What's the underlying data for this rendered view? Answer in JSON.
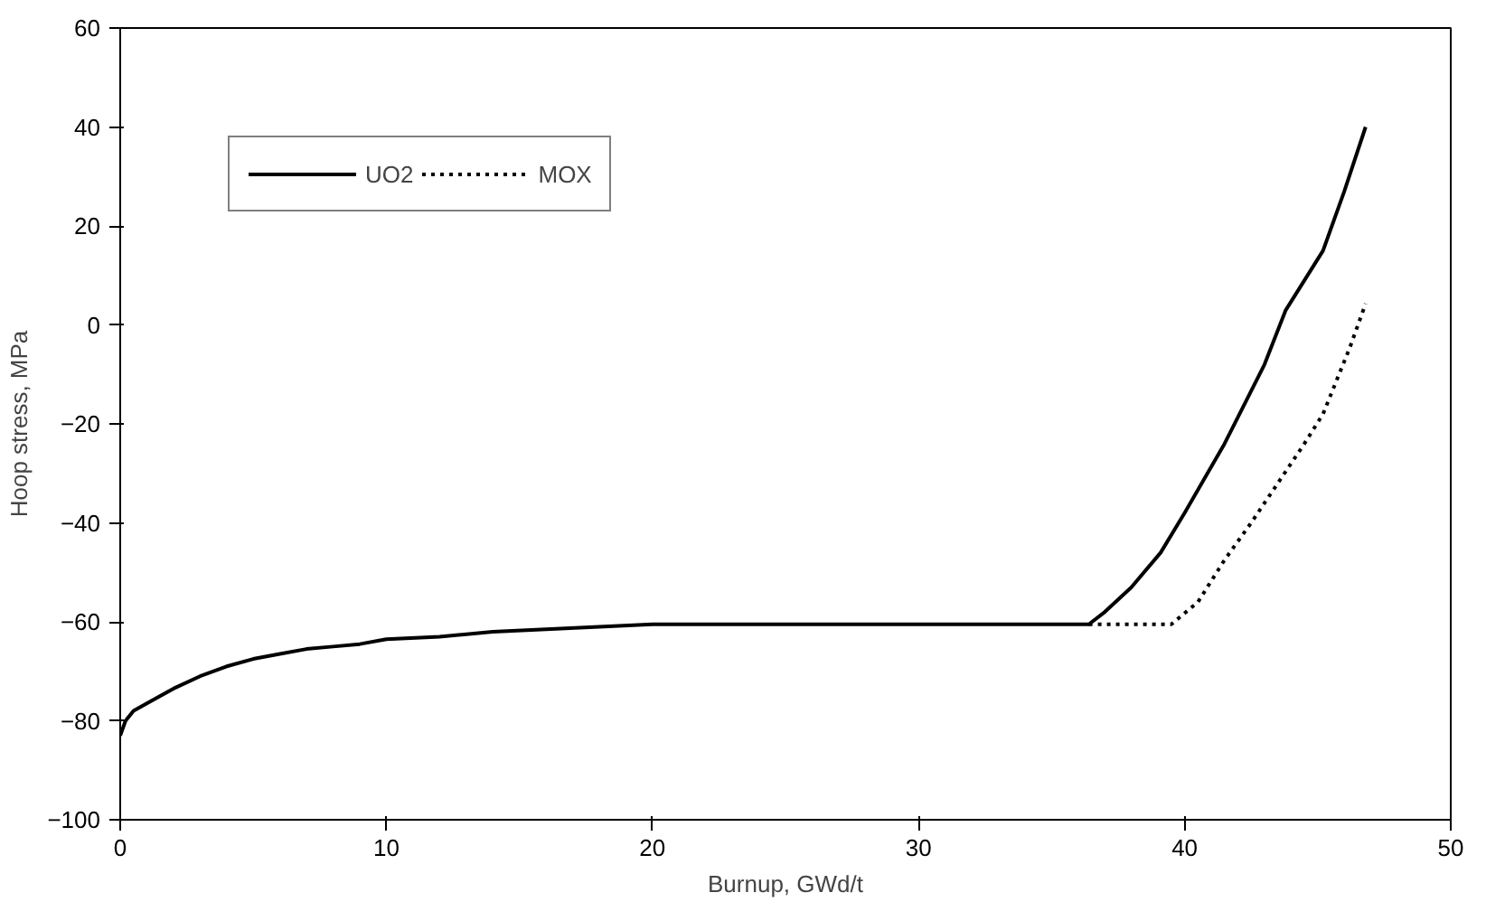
{
  "chart_data": {
    "type": "line",
    "xlabel": "Burnup, GWd/t",
    "ylabel": "Hoop stress, MPa",
    "xlim": [
      0,
      50
    ],
    "ylim": [
      -100,
      60
    ],
    "xticks": [
      0,
      10,
      20,
      30,
      40,
      50
    ],
    "yticks": [
      -100,
      -80,
      -60,
      -40,
      -20,
      0,
      20,
      40,
      60
    ],
    "grid": false,
    "legend": "top left",
    "marker": "none",
    "series": [
      {
        "name": "UO2",
        "color": "#000000",
        "line_style": "solid",
        "x": [
          0,
          0.2,
          0.5,
          1,
          2,
          3,
          4,
          5,
          6,
          7,
          8,
          9,
          10,
          12,
          14,
          16,
          18,
          20,
          25,
          30,
          33,
          36.4,
          37,
          38,
          39.1,
          40,
          41.5,
          43,
          43.8,
          45.2,
          46,
          46.8
        ],
        "values": [
          -83,
          -80,
          -78,
          -76.5,
          -73.5,
          -71,
          -69,
          -67.5,
          -66.5,
          -65.5,
          -65,
          -64.5,
          -63.5,
          -63,
          -62,
          -61.5,
          -61,
          -60.5,
          -60.5,
          -60.5,
          -60.5,
          -60.5,
          -58,
          -53,
          -46,
          -38,
          -24,
          -8,
          3,
          15,
          27,
          40
        ]
      },
      {
        "name": "MOX",
        "color": "#000000",
        "line_style": "dotted",
        "x": [
          36.4,
          38,
          39.5,
          40.5,
          41.5,
          42.5,
          43.8,
          44.5,
          45.2,
          46.2,
          46.8
        ],
        "values": [
          -60.5,
          -60.5,
          -60.5,
          -56,
          -47.5,
          -40,
          -29.6,
          -24,
          -18,
          -4.7,
          4.3
        ]
      }
    ]
  }
}
